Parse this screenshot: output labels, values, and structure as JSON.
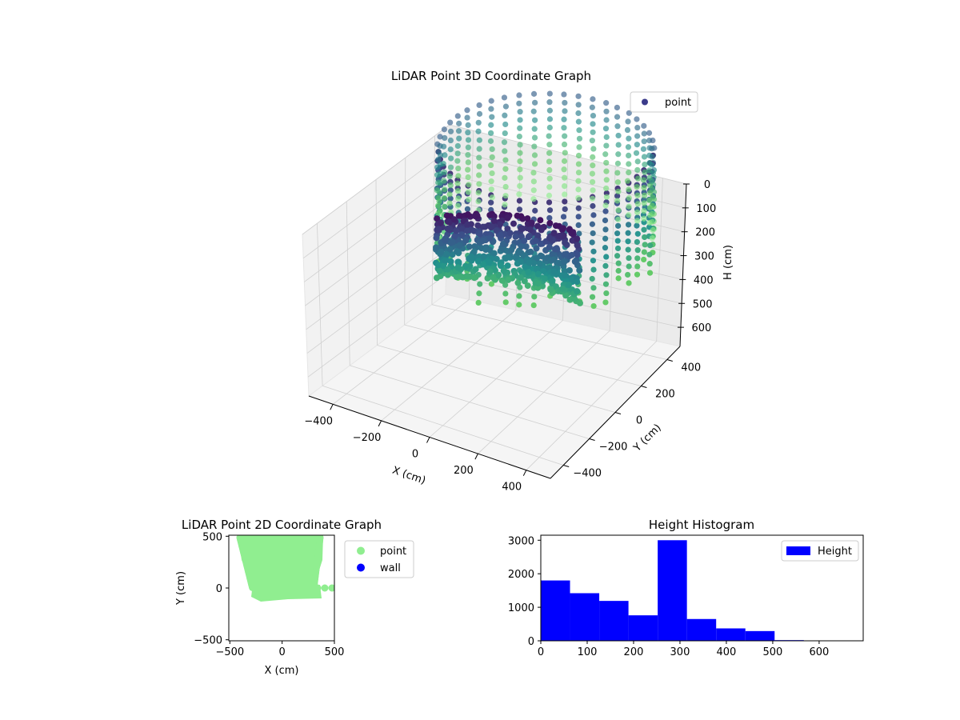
{
  "chart_data": [
    {
      "type": "scatter",
      "projection": "3d",
      "title": "LiDAR Point 3D Coordinate Graph",
      "xlabel": "X (cm)",
      "ylabel": "Y (cm)",
      "zlabel": "H (cm)",
      "xlim": [
        -500,
        500
      ],
      "ylim": [
        -500,
        500
      ],
      "zlim": [
        680,
        0
      ],
      "x_ticks": [
        -400,
        -200,
        0,
        200,
        400
      ],
      "y_ticks": [
        -400,
        -200,
        0,
        200,
        400
      ],
      "z_ticks": [
        0,
        100,
        200,
        300,
        400,
        500,
        600
      ],
      "grid": true,
      "legend": {
        "placement": "top-right",
        "entries": [
          "point"
        ]
      },
      "series": [
        {
          "name": "point",
          "legend_color": "#3b3b8a",
          "colormap": [
            "#440154",
            "#3b528b",
            "#21918c",
            "#5ec962",
            "#90ee90"
          ],
          "description_shape": "ring of points around sensor with dense wall segment",
          "points_sample": [
            {
              "x": -300,
              "y": 250,
              "h": 180
            },
            {
              "x": -250,
              "y": 100,
              "h": 250
            },
            {
              "x": -150,
              "y": -50,
              "h": 300
            },
            {
              "x": 0,
              "y": -100,
              "h": 320
            },
            {
              "x": 150,
              "y": -120,
              "h": 300
            },
            {
              "x": 300,
              "y": 0,
              "h": 260
            },
            {
              "x": 380,
              "y": 250,
              "h": 200
            },
            {
              "x": 200,
              "y": 450,
              "h": 150
            },
            {
              "x": -100,
              "y": 480,
              "h": 120
            }
          ]
        }
      ]
    },
    {
      "type": "scatter",
      "title": "LiDAR Point 2D Coordinate Graph",
      "xlabel": "X (cm)",
      "ylabel": "Y (cm)",
      "xlim": [
        -510,
        500
      ],
      "ylim": [
        -510,
        510
      ],
      "x_ticks": [
        -500,
        0,
        500
      ],
      "y_ticks": [
        -500,
        0,
        500
      ],
      "legend": {
        "placement": "outside-right",
        "entries": [
          "point",
          "wall"
        ]
      },
      "series": [
        {
          "name": "point",
          "color": "#90ee90"
        },
        {
          "name": "wall",
          "color": "#0000ff"
        }
      ]
    },
    {
      "type": "bar",
      "subtype": "histogram",
      "title": "Height Histogram",
      "xlim": [
        0,
        695
      ],
      "ylim": [
        0,
        3150
      ],
      "x_ticks": [
        0,
        100,
        200,
        300,
        400,
        500,
        600
      ],
      "y_ticks": [
        0,
        1000,
        2000,
        3000
      ],
      "legend": {
        "placement": "top-right",
        "entries": [
          "Height"
        ]
      },
      "color": "#0000ff",
      "bin_edges": [
        0,
        63,
        126,
        189,
        252,
        315,
        378,
        441,
        504,
        567,
        630
      ],
      "series": [
        {
          "name": "Height",
          "values": [
            1800,
            1420,
            1190,
            760,
            3000,
            650,
            370,
            290,
            20,
            5
          ]
        }
      ]
    }
  ]
}
